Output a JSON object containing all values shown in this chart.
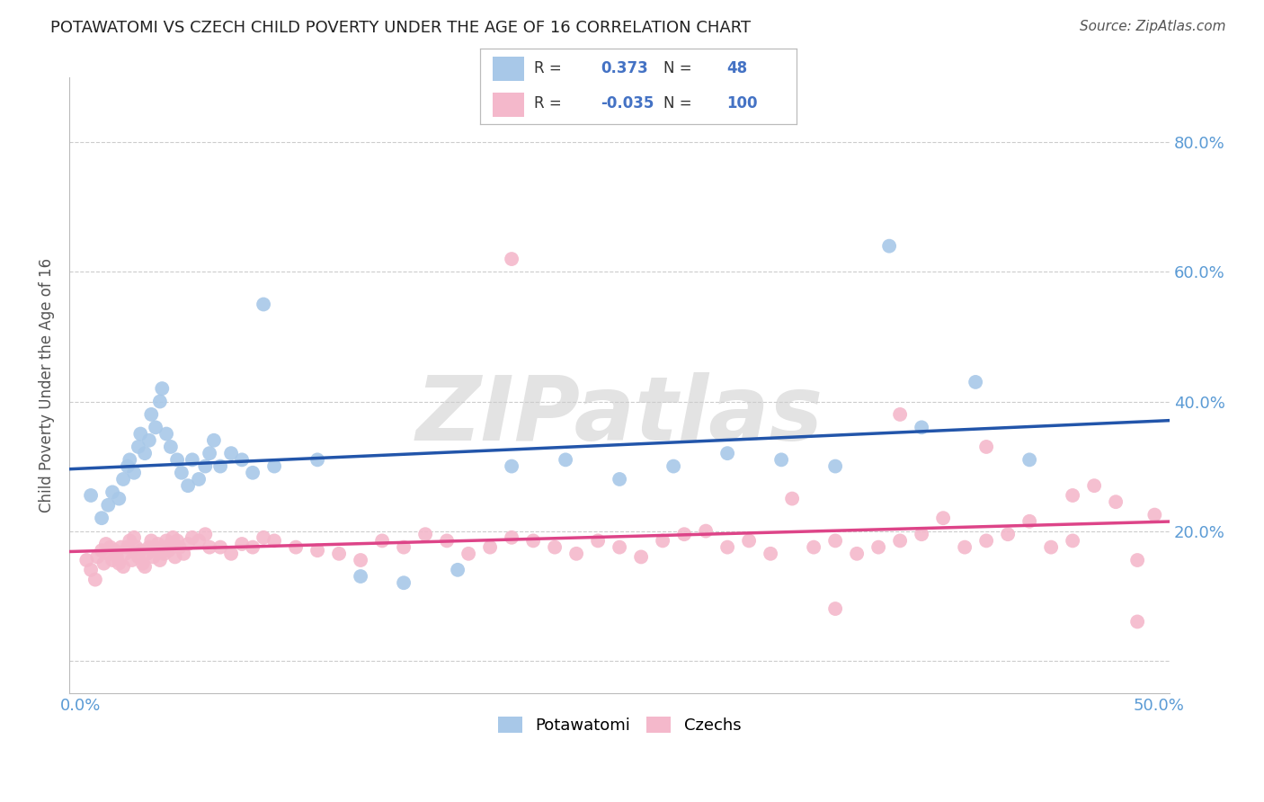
{
  "title": "POTAWATOMI VS CZECH CHILD POVERTY UNDER THE AGE OF 16 CORRELATION CHART",
  "source": "Source: ZipAtlas.com",
  "ylabel": "Child Poverty Under the Age of 16",
  "xlim": [
    -0.005,
    0.505
  ],
  "ylim": [
    -0.05,
    0.9
  ],
  "yticks": [
    0.0,
    0.2,
    0.4,
    0.6,
    0.8
  ],
  "xticks": [
    0.0,
    0.5
  ],
  "xtick_labels": [
    "0.0%",
    "50.0%"
  ],
  "ytick_labels_right": [
    "",
    "20.0%",
    "40.0%",
    "60.0%",
    "80.0%"
  ],
  "grid_color": "#cccccc",
  "background_color": "#ffffff",
  "potawatomi_color": "#a8c8e8",
  "czech_color": "#f4b8cb",
  "potawatomi_line_color": "#2255aa",
  "czech_line_color": "#dd4488",
  "R_potawatomi": 0.373,
  "N_potawatomi": 48,
  "R_czech": -0.035,
  "N_czech": 100,
  "legend_label_potawatomi": "Potawatomi",
  "legend_label_czech": "Czechs",
  "watermark": "ZIPatlas",
  "potawatomi_x": [
    0.005,
    0.01,
    0.013,
    0.015,
    0.018,
    0.02,
    0.022,
    0.023,
    0.025,
    0.027,
    0.028,
    0.03,
    0.032,
    0.033,
    0.035,
    0.037,
    0.038,
    0.04,
    0.042,
    0.045,
    0.047,
    0.05,
    0.052,
    0.055,
    0.058,
    0.06,
    0.062,
    0.065,
    0.07,
    0.075,
    0.08,
    0.085,
    0.09,
    0.11,
    0.13,
    0.15,
    0.175,
    0.2,
    0.225,
    0.25,
    0.275,
    0.3,
    0.325,
    0.35,
    0.375,
    0.39,
    0.415,
    0.44
  ],
  "potawatomi_y": [
    0.255,
    0.22,
    0.24,
    0.26,
    0.25,
    0.28,
    0.3,
    0.31,
    0.29,
    0.33,
    0.35,
    0.32,
    0.34,
    0.38,
    0.36,
    0.4,
    0.42,
    0.35,
    0.33,
    0.31,
    0.29,
    0.27,
    0.31,
    0.28,
    0.3,
    0.32,
    0.34,
    0.3,
    0.32,
    0.31,
    0.29,
    0.55,
    0.3,
    0.31,
    0.13,
    0.12,
    0.14,
    0.3,
    0.31,
    0.28,
    0.3,
    0.32,
    0.31,
    0.3,
    0.64,
    0.36,
    0.43,
    0.31
  ],
  "czech_x": [
    0.003,
    0.005,
    0.007,
    0.008,
    0.01,
    0.011,
    0.012,
    0.013,
    0.014,
    0.015,
    0.016,
    0.017,
    0.018,
    0.019,
    0.02,
    0.021,
    0.022,
    0.023,
    0.024,
    0.025,
    0.026,
    0.027,
    0.028,
    0.029,
    0.03,
    0.031,
    0.032,
    0.033,
    0.034,
    0.035,
    0.036,
    0.037,
    0.038,
    0.039,
    0.04,
    0.041,
    0.042,
    0.043,
    0.044,
    0.045,
    0.046,
    0.048,
    0.05,
    0.052,
    0.055,
    0.058,
    0.06,
    0.065,
    0.07,
    0.075,
    0.08,
    0.085,
    0.09,
    0.1,
    0.11,
    0.12,
    0.13,
    0.14,
    0.15,
    0.16,
    0.17,
    0.18,
    0.19,
    0.2,
    0.21,
    0.22,
    0.23,
    0.24,
    0.25,
    0.26,
    0.27,
    0.28,
    0.29,
    0.3,
    0.31,
    0.32,
    0.33,
    0.34,
    0.35,
    0.36,
    0.37,
    0.38,
    0.39,
    0.4,
    0.41,
    0.42,
    0.43,
    0.44,
    0.45,
    0.46,
    0.47,
    0.48,
    0.49,
    0.498,
    0.38,
    0.42,
    0.46,
    0.49,
    0.2,
    0.35
  ],
  "czech_y": [
    0.155,
    0.14,
    0.125,
    0.16,
    0.17,
    0.15,
    0.18,
    0.165,
    0.175,
    0.155,
    0.17,
    0.16,
    0.15,
    0.175,
    0.145,
    0.165,
    0.175,
    0.185,
    0.155,
    0.19,
    0.175,
    0.16,
    0.17,
    0.15,
    0.145,
    0.165,
    0.175,
    0.185,
    0.16,
    0.17,
    0.18,
    0.155,
    0.175,
    0.165,
    0.185,
    0.17,
    0.18,
    0.19,
    0.16,
    0.185,
    0.175,
    0.165,
    0.18,
    0.19,
    0.185,
    0.195,
    0.175,
    0.175,
    0.165,
    0.18,
    0.175,
    0.19,
    0.185,
    0.175,
    0.17,
    0.165,
    0.155,
    0.185,
    0.175,
    0.195,
    0.185,
    0.165,
    0.175,
    0.19,
    0.185,
    0.175,
    0.165,
    0.185,
    0.175,
    0.16,
    0.185,
    0.195,
    0.2,
    0.175,
    0.185,
    0.165,
    0.25,
    0.175,
    0.185,
    0.165,
    0.175,
    0.185,
    0.195,
    0.22,
    0.175,
    0.185,
    0.195,
    0.215,
    0.175,
    0.185,
    0.27,
    0.245,
    0.155,
    0.225,
    0.38,
    0.33,
    0.255,
    0.06,
    0.62,
    0.08
  ]
}
